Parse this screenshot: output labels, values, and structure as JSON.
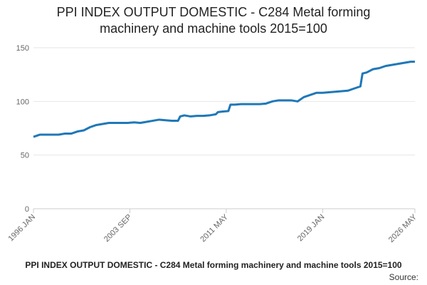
{
  "chart_data": {
    "type": "line",
    "title": "PPI INDEX OUTPUT DOMESTIC - C284 Metal forming machinery and machine tools 2015=100",
    "source": "Source:",
    "x": [
      "1996 JAN",
      "1996 JUL",
      "1997 JAN",
      "1997 JUL",
      "1998 JAN",
      "1998 JUL",
      "1999 JAN",
      "1999 JUL",
      "2000 JAN",
      "2000 JUL",
      "2001 JAN",
      "2001 JUL",
      "2002 JAN",
      "2002 JUL",
      "2003 JAN",
      "2003 JUL",
      "2004 JAN",
      "2004 JUL",
      "2005 JAN",
      "2005 JUL",
      "2006 JAN",
      "2006 JUL",
      "2007 JAN",
      "2007 JUL",
      "2007 SEP",
      "2008 JAN",
      "2008 JUL",
      "2009 JAN",
      "2009 JUL",
      "2010 JAN",
      "2010 JUL",
      "2010 SEP",
      "2011 JAN",
      "2011 JUL",
      "2011 SEP",
      "2012 JAN",
      "2012 JUL",
      "2013 JAN",
      "2013 JUL",
      "2014 JAN",
      "2014 JUL",
      "2015 JAN",
      "2015 JUL",
      "2016 JAN",
      "2016 JUL",
      "2017 JAN",
      "2017 JUL",
      "2018 JAN",
      "2018 JUL",
      "2019 JAN",
      "2019 JUL",
      "2020 JAN",
      "2020 JUL",
      "2021 JAN",
      "2021 JUL",
      "2022 JAN",
      "2022 MAR",
      "2022 JUL",
      "2023 JAN",
      "2023 JUL",
      "2024 JAN",
      "2024 JUL",
      "2025 JAN",
      "2025 JUL",
      "2026 JAN",
      "2026 MAY"
    ],
    "series": [
      {
        "color": "#1f78b8",
        "values": [
          67,
          69,
          69,
          69,
          69,
          70,
          70,
          72,
          73,
          76,
          78,
          79,
          80,
          80,
          80,
          80,
          80.5,
          80,
          81,
          82,
          83,
          82.5,
          82,
          82,
          86,
          87,
          86,
          86.5,
          86.5,
          87,
          88,
          90,
          90.5,
          91,
          97,
          97,
          97.5,
          97.5,
          97.5,
          97.5,
          98,
          100,
          101,
          101,
          101,
          100,
          104,
          106,
          108,
          108,
          108.5,
          109,
          109.5,
          110,
          112,
          114,
          126,
          127,
          130,
          131,
          133,
          134,
          135,
          136,
          137,
          137
        ]
      }
    ],
    "xlim": [
      "1996 JAN",
      "2026 MAY"
    ],
    "xticks": [
      "1996 JAN",
      "2003 SEP",
      "2011 MAY",
      "2019 JAN",
      "2026 MAY"
    ],
    "ylim": [
      0,
      150
    ],
    "yticks": [
      0,
      50,
      100,
      150
    ],
    "grid": true
  }
}
